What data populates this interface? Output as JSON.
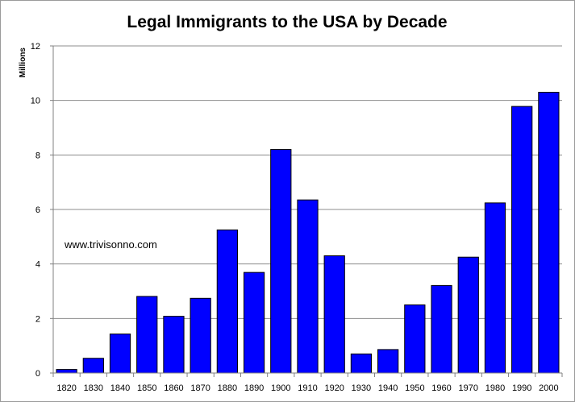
{
  "chart_data": {
    "type": "bar",
    "title": "Legal Immigrants to the USA by Decade",
    "ylabel": "Millions",
    "xlabel": "",
    "annotation": "www.trivisonno.com",
    "categories": [
      "1820",
      "1830",
      "1840",
      "1850",
      "1860",
      "1870",
      "1880",
      "1890",
      "1900",
      "1910",
      "1920",
      "1930",
      "1940",
      "1950",
      "1960",
      "1970",
      "1980",
      "1990",
      "2000"
    ],
    "values": [
      0.13,
      0.54,
      1.43,
      2.81,
      2.08,
      2.74,
      5.25,
      3.69,
      8.2,
      6.35,
      4.3,
      0.7,
      0.86,
      2.5,
      3.21,
      4.25,
      6.24,
      9.78,
      10.3
    ],
    "ylim": [
      0,
      12
    ],
    "yticks": [
      "0",
      "2",
      "4",
      "6",
      "8",
      "10",
      "12"
    ],
    "grid": true,
    "bar_color": "#0000ff",
    "legend": "none"
  }
}
